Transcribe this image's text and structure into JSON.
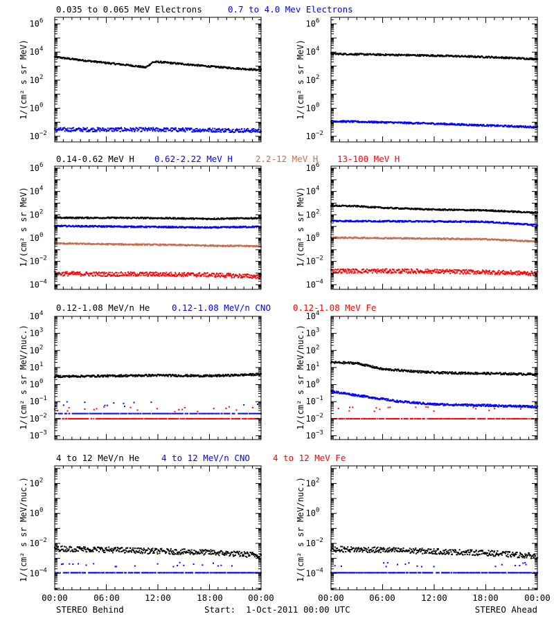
{
  "colors": {
    "black": "#000000",
    "blue": "#0000ff",
    "brown": "#c86e50",
    "red": "#ff0000"
  },
  "rows": [
    {
      "legend": [
        {
          "text": "0.035 to 0.065 MeV Electrons",
          "color": "#000000"
        },
        {
          "text": "0.7 to 4.0 Mev Electrons",
          "color": "#0000ff"
        }
      ],
      "ylabel": "1/(cm² s sr MeV)"
    },
    {
      "legend": [
        {
          "text": "0.14-0.62 MeV H",
          "color": "#000000"
        },
        {
          "text": "0.62-2.22 MeV H",
          "color": "#0000ff"
        },
        {
          "text": "2.2-12 MeV H",
          "color": "#c86e50"
        },
        {
          "text": "13-100 MeV H",
          "color": "#ff0000"
        }
      ],
      "ylabel": "1/(cm² s sr MeV)"
    },
    {
      "legend": [
        {
          "text": "0.12-1.08 MeV/n He",
          "color": "#000000"
        },
        {
          "text": "0.12-1.08 MeV/n CNO",
          "color": "#0000ff"
        },
        {
          "text": "0.12-1.08 MeV Fe",
          "color": "#ff0000"
        }
      ],
      "ylabel": "1/(cm² s sr MeV/nuc.)"
    },
    {
      "legend": [
        {
          "text": "4 to 12 MeV/n He",
          "color": "#000000"
        },
        {
          "text": "4 to 12 MeV/n CNO",
          "color": "#0000ff"
        },
        {
          "text": "4 to 12 MeV Fe",
          "color": "#ff0000"
        }
      ],
      "ylabel": "1/(cm² s sr MeV/nuc.)"
    }
  ],
  "x_ticks": [
    "00:00",
    "06:00",
    "12:00",
    "18:00",
    "00:00"
  ],
  "footer": {
    "left": "STEREO Behind",
    "center": "Start:  1-Oct-2011 00:00 UTC",
    "right": "STEREO Ahead"
  },
  "chart_data": [
    {
      "type": "scatter",
      "spacecraft": "STEREO Behind",
      "row": 0,
      "yscale": "log",
      "ylim": [
        0.004,
        3000000
      ],
      "ytick_exponents": [
        -2,
        0,
        2,
        4,
        6
      ],
      "xlim": [
        0,
        24
      ],
      "series": [
        {
          "name": "0.035 to 0.065 MeV Electrons",
          "color": "#000000",
          "points": [
            [
              0,
              4500
            ],
            [
              3,
              2700
            ],
            [
              6,
              1700
            ],
            [
              9,
              1100
            ],
            [
              10.6,
              800
            ],
            [
              11.4,
              1900
            ],
            [
              12,
              2000
            ],
            [
              15,
              1400
            ],
            [
              18,
              950
            ],
            [
              21,
              700
            ],
            [
              24,
              520
            ]
          ]
        },
        {
          "name": "0.7 to 4.0 Mev Electrons",
          "color": "#0000ff",
          "points": [
            [
              0,
              0.03
            ],
            [
              6,
              0.03
            ],
            [
              12,
              0.03
            ],
            [
              18,
              0.028
            ],
            [
              24,
              0.025
            ]
          ]
        }
      ]
    },
    {
      "type": "scatter",
      "spacecraft": "STEREO Ahead",
      "row": 0,
      "yscale": "log",
      "ylim": [
        0.004,
        3000000
      ],
      "ytick_exponents": [
        -2,
        0,
        2,
        4,
        6
      ],
      "xlim": [
        0,
        24
      ],
      "series": [
        {
          "name": "0.035 to 0.065 MeV Electrons",
          "color": "#000000",
          "points": [
            [
              0,
              7500
            ],
            [
              6,
              6500
            ],
            [
              12,
              5600
            ],
            [
              18,
              4500
            ],
            [
              24,
              3200
            ]
          ]
        },
        {
          "name": "0.7 to 4.0 Mev Electrons",
          "color": "#0000ff",
          "points": [
            [
              0,
              0.12
            ],
            [
              6,
              0.1
            ],
            [
              12,
              0.08
            ],
            [
              18,
              0.06
            ],
            [
              24,
              0.045
            ]
          ]
        }
      ]
    },
    {
      "type": "scatter",
      "spacecraft": "STEREO Behind",
      "row": 1,
      "yscale": "log",
      "ylim": [
        4e-05,
        1500000
      ],
      "ytick_exponents": [
        -4,
        -2,
        0,
        2,
        4,
        6
      ],
      "xlim": [
        0,
        24
      ],
      "series": [
        {
          "name": "0.14-0.62 MeV H",
          "color": "#000000",
          "points": [
            [
              0,
              55
            ],
            [
              6,
              55
            ],
            [
              12,
              52
            ],
            [
              18,
              45
            ],
            [
              24,
              52
            ]
          ]
        },
        {
          "name": "0.62-2.22 MeV H",
          "color": "#0000ff",
          "points": [
            [
              0,
              11
            ],
            [
              6,
              10
            ],
            [
              12,
              9
            ],
            [
              18,
              8
            ],
            [
              24,
              9.5
            ]
          ]
        },
        {
          "name": "2.2-12 MeV H",
          "color": "#c86e50",
          "points": [
            [
              0,
              0.35
            ],
            [
              6,
              0.3
            ],
            [
              12,
              0.27
            ],
            [
              18,
              0.23
            ],
            [
              24,
              0.2
            ]
          ]
        },
        {
          "name": "13-100 MeV H",
          "color": "#ff0000",
          "points": [
            [
              0,
              0.0009
            ],
            [
              6,
              0.0008
            ],
            [
              12,
              0.0008
            ],
            [
              18,
              0.0007
            ],
            [
              24,
              0.0005
            ]
          ]
        }
      ]
    },
    {
      "type": "scatter",
      "spacecraft": "STEREO Ahead",
      "row": 1,
      "yscale": "log",
      "ylim": [
        4e-05,
        1500000
      ],
      "ytick_exponents": [
        -4,
        -2,
        0,
        2,
        4,
        6
      ],
      "xlim": [
        0,
        24
      ],
      "series": [
        {
          "name": "0.14-0.62 MeV H",
          "color": "#000000",
          "points": [
            [
              0,
              600
            ],
            [
              3,
              550
            ],
            [
              6,
              400
            ],
            [
              12,
              280
            ],
            [
              18,
              240
            ],
            [
              24,
              150
            ]
          ]
        },
        {
          "name": "0.62-2.22 MeV H",
          "color": "#0000ff",
          "points": [
            [
              0,
              30
            ],
            [
              6,
              28
            ],
            [
              12,
              27
            ],
            [
              18,
              25
            ],
            [
              24,
              13
            ]
          ]
        },
        {
          "name": "2.2-12 MeV H",
          "color": "#c86e50",
          "points": [
            [
              0,
              1.1
            ],
            [
              6,
              1.0
            ],
            [
              12,
              0.9
            ],
            [
              18,
              0.8
            ],
            [
              24,
              0.5
            ]
          ]
        },
        {
          "name": "13-100 MeV H",
          "color": "#ff0000",
          "points": [
            [
              0,
              0.0015
            ],
            [
              6,
              0.0015
            ],
            [
              12,
              0.0014
            ],
            [
              18,
              0.0012
            ],
            [
              24,
              0.0009
            ]
          ]
        }
      ]
    },
    {
      "type": "scatter",
      "spacecraft": "STEREO Behind",
      "row": 2,
      "yscale": "log",
      "ylim": [
        0.0006,
        10000
      ],
      "ytick_exponents": [
        -3,
        -2,
        -1,
        0,
        1,
        2,
        3,
        4
      ],
      "xlim": [
        0,
        24
      ],
      "series": [
        {
          "name": "0.12-1.08 MeV/n He",
          "color": "#000000",
          "points": [
            [
              0,
              3.0
            ],
            [
              6,
              3.2
            ],
            [
              12,
              3.5
            ],
            [
              18,
              3.2
            ],
            [
              24,
              4.0
            ]
          ]
        },
        {
          "name": "0.12-1.08 MeV/n CNO",
          "color": "#0000ff",
          "points": [
            [
              0,
              0.02
            ],
            [
              24,
              0.02
            ]
          ]
        },
        {
          "name": "0.12-1.08 MeV Fe",
          "color": "#ff0000",
          "points": [
            [
              0,
              0.01
            ],
            [
              24,
              0.01
            ]
          ]
        }
      ]
    },
    {
      "type": "scatter",
      "spacecraft": "STEREO Ahead",
      "row": 2,
      "yscale": "log",
      "ylim": [
        0.0006,
        10000
      ],
      "ytick_exponents": [
        -3,
        -2,
        -1,
        0,
        1,
        2,
        3,
        4
      ],
      "xlim": [
        0,
        24
      ],
      "series": [
        {
          "name": "0.12-1.08 MeV/n He",
          "color": "#000000",
          "points": [
            [
              0,
              20
            ],
            [
              3,
              18
            ],
            [
              6,
              8
            ],
            [
              12,
              5
            ],
            [
              18,
              4.5
            ],
            [
              24,
              4.0
            ]
          ]
        },
        {
          "name": "0.12-1.08 MeV/n CNO",
          "color": "#0000ff",
          "points": [
            [
              0,
              0.4
            ],
            [
              4,
              0.2
            ],
            [
              8,
              0.1
            ],
            [
              12,
              0.07
            ],
            [
              18,
              0.06
            ],
            [
              24,
              0.05
            ]
          ]
        },
        {
          "name": "0.12-1.08 MeV Fe",
          "color": "#ff0000",
          "points": [
            [
              0,
              0.01
            ],
            [
              24,
              0.01
            ]
          ]
        }
      ]
    },
    {
      "type": "scatter",
      "spacecraft": "STEREO Behind",
      "row": 3,
      "yscale": "log",
      "ylim": [
        8e-06,
        1500
      ],
      "ytick_exponents": [
        -4,
        -2,
        0,
        2
      ],
      "xlim": [
        0,
        24
      ],
      "series": [
        {
          "name": "4 to 12 MeV/n He",
          "color": "#000000",
          "points": [
            [
              0,
              0.0045
            ],
            [
              6,
              0.0038
            ],
            [
              12,
              0.003
            ],
            [
              18,
              0.0025
            ],
            [
              24,
              0.0016
            ]
          ]
        },
        {
          "name": "4 to 12 MeV/n CNO",
          "color": "#0000ff",
          "points": [
            [
              0,
              0.00011
            ],
            [
              24,
              0.00011
            ]
          ]
        },
        {
          "name": "4 to 12 MeV Fe",
          "color": "#ff0000",
          "points": []
        }
      ]
    },
    {
      "type": "scatter",
      "spacecraft": "STEREO Ahead",
      "row": 3,
      "yscale": "log",
      "ylim": [
        8e-06,
        1500
      ],
      "ytick_exponents": [
        -4,
        -2,
        0,
        2
      ],
      "xlim": [
        0,
        24
      ],
      "series": [
        {
          "name": "4 to 12 MeV/n He",
          "color": "#000000",
          "points": [
            [
              0,
              0.0042
            ],
            [
              6,
              0.0036
            ],
            [
              12,
              0.0029
            ],
            [
              18,
              0.0023
            ],
            [
              24,
              0.0014
            ]
          ]
        },
        {
          "name": "4 to 12 MeV/n CNO",
          "color": "#0000ff",
          "points": [
            [
              0,
              0.00011
            ],
            [
              24,
              0.00011
            ]
          ]
        },
        {
          "name": "4 to 12 MeV Fe",
          "color": "#ff0000",
          "points": []
        }
      ]
    }
  ]
}
